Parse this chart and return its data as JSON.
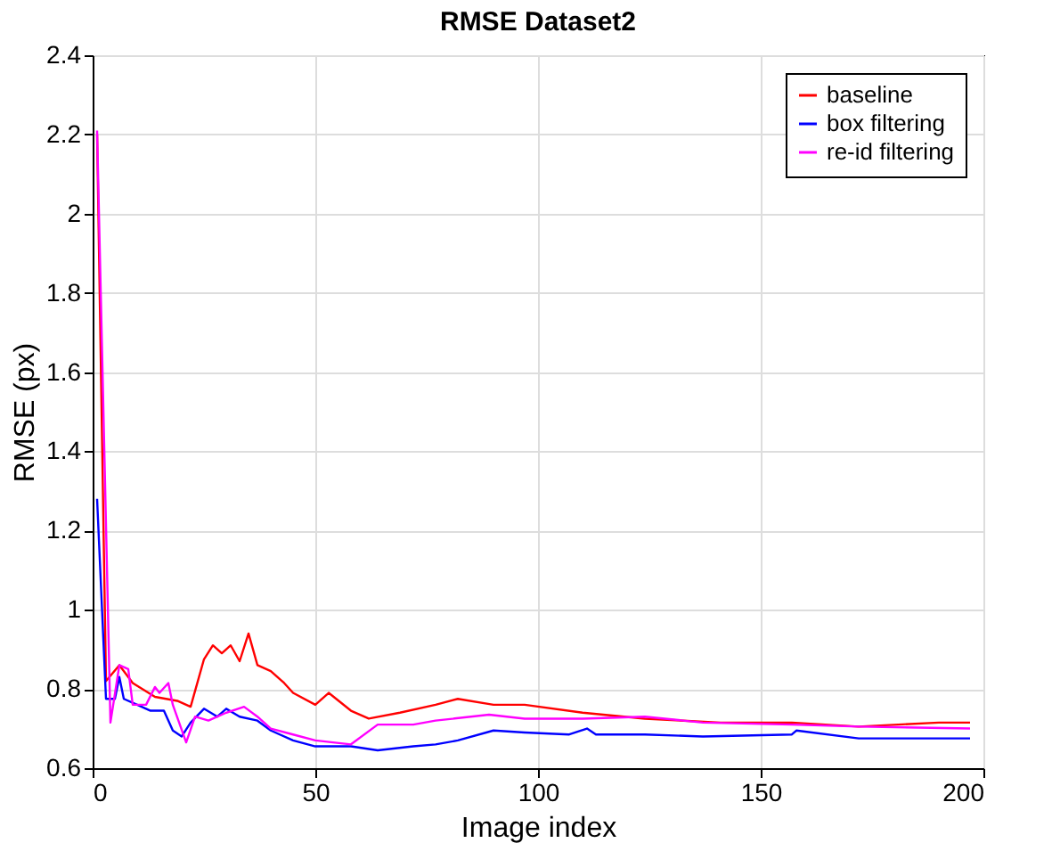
{
  "chart_data": {
    "type": "line",
    "title": "RMSE Dataset2",
    "xlabel": "Image index",
    "ylabel": "RMSE (px)",
    "xlim": [
      0,
      200
    ],
    "xticks": [
      0,
      50,
      100,
      150,
      200
    ],
    "ylim": [
      0.6,
      2.4
    ],
    "yticks": [
      0.6,
      0.8,
      1,
      1.2,
      1.4,
      1.6,
      1.8,
      2,
      2.2,
      2.4
    ],
    "grid": true,
    "legend": "top right",
    "line_style": "solid",
    "marker": "none",
    "series": [
      {
        "name": "baseline",
        "color": "#ff0000",
        "x": [
          1,
          3,
          6,
          9,
          14,
          19,
          22,
          25,
          27,
          29,
          31,
          33,
          35,
          37,
          40,
          43,
          45,
          50,
          53,
          58,
          62,
          69,
          77,
          82,
          90,
          97,
          110,
          124,
          141,
          157,
          172,
          190,
          197
        ],
        "values": [
          2.2,
          0.82,
          0.86,
          0.815,
          0.78,
          0.77,
          0.755,
          0.875,
          0.91,
          0.89,
          0.91,
          0.87,
          0.94,
          0.86,
          0.845,
          0.815,
          0.79,
          0.76,
          0.79,
          0.745,
          0.725,
          0.74,
          0.76,
          0.775,
          0.76,
          0.76,
          0.74,
          0.725,
          0.715,
          0.715,
          0.705,
          0.715,
          0.715
        ]
      },
      {
        "name": "box filtering",
        "color": "#0000ff",
        "x": [
          1,
          3,
          5,
          6,
          7,
          10,
          13,
          16,
          18,
          20,
          22,
          25,
          28,
          30,
          33,
          37,
          40,
          45,
          50,
          58,
          64,
          72,
          77,
          82,
          90,
          97,
          107,
          111,
          113,
          124,
          137,
          157,
          158,
          172,
          190,
          197
        ],
        "values": [
          1.28,
          0.775,
          0.775,
          0.83,
          0.775,
          0.76,
          0.745,
          0.745,
          0.695,
          0.68,
          0.715,
          0.75,
          0.73,
          0.75,
          0.73,
          0.72,
          0.695,
          0.67,
          0.655,
          0.655,
          0.645,
          0.655,
          0.66,
          0.67,
          0.695,
          0.69,
          0.685,
          0.7,
          0.685,
          0.685,
          0.68,
          0.685,
          0.695,
          0.675,
          0.675,
          0.675
        ]
      },
      {
        "name": "re-id filtering",
        "color": "#ff00ff",
        "x": [
          1,
          4,
          6,
          8,
          9,
          12,
          14,
          15,
          17,
          18,
          21,
          23,
          26,
          30,
          34,
          37,
          40,
          45,
          50,
          58,
          64,
          72,
          77,
          89,
          97,
          110,
          124,
          137,
          157,
          172,
          197
        ],
        "values": [
          2.21,
          0.715,
          0.86,
          0.85,
          0.76,
          0.76,
          0.805,
          0.79,
          0.815,
          0.76,
          0.665,
          0.73,
          0.72,
          0.74,
          0.755,
          0.73,
          0.7,
          0.685,
          0.67,
          0.66,
          0.71,
          0.71,
          0.72,
          0.735,
          0.725,
          0.725,
          0.73,
          0.715,
          0.71,
          0.705,
          0.7
        ]
      }
    ]
  }
}
